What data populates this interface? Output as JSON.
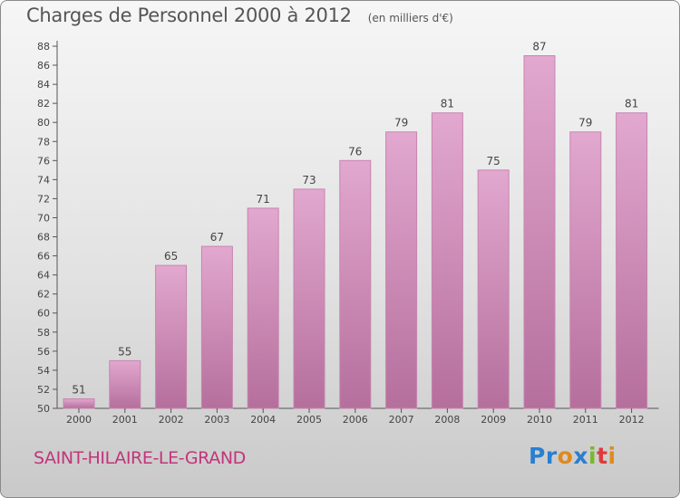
{
  "title": "Charges de Personnel 2000 à 2012",
  "subtitle": "(en milliers d'€)",
  "commune": "SAINT-HILAIRE-LE-GRAND",
  "logo": {
    "text": "Proxiti",
    "letters": [
      {
        "ch": "P",
        "color": "#2a7fd0"
      },
      {
        "ch": "r",
        "color": "#2a7fd0"
      },
      {
        "ch": "o",
        "color": "#e08a1e"
      },
      {
        "ch": "x",
        "color": "#2a7fd0"
      },
      {
        "ch": "i",
        "color": "#7ab82a"
      },
      {
        "ch": "t",
        "color": "#e03a3a"
      },
      {
        "ch": "i",
        "color": "#e08a1e"
      }
    ]
  },
  "colors": {
    "bar_top": "#e2a8cf",
    "bar_bottom": "#b56f9c",
    "bar_stroke": "#c884b0",
    "axis": "#555555",
    "text": "#444444",
    "commune": "#c2357a"
  },
  "chart_data": {
    "type": "bar",
    "categories": [
      "2000",
      "2001",
      "2002",
      "2003",
      "2004",
      "2005",
      "2006",
      "2007",
      "2008",
      "2009",
      "2010",
      "2011",
      "2012"
    ],
    "values": [
      51,
      55,
      65,
      67,
      71,
      73,
      76,
      79,
      81,
      75,
      87,
      79,
      81
    ],
    "title": "Charges de Personnel 2000 à 2012",
    "subtitle": "(en milliers d'€)",
    "xlabel": "",
    "ylabel": "",
    "ylim": [
      50,
      88
    ],
    "yticks": [
      50,
      52,
      54,
      56,
      58,
      60,
      62,
      64,
      66,
      68,
      70,
      72,
      74,
      76,
      78,
      80,
      82,
      84,
      86,
      88
    ],
    "grid": false,
    "data_labels": true
  }
}
